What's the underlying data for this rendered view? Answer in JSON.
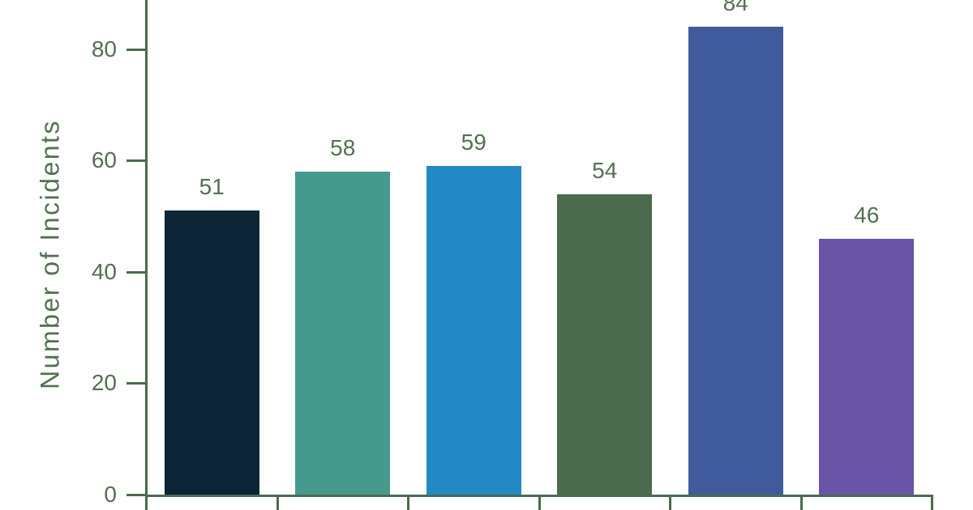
{
  "chart_data": {
    "type": "bar",
    "title": "",
    "xlabel": "",
    "ylabel": "Number of Incidents",
    "values": [
      51,
      58,
      59,
      54,
      84,
      46
    ],
    "value_labels": [
      "51",
      "58",
      "59",
      "54",
      "84",
      "46"
    ],
    "bar_colors": [
      "#0d2637",
      "#459a8d",
      "#2289c5",
      "#4c6b4e",
      "#3f5b9b",
      "#6a54a7"
    ],
    "yticks": [
      "0",
      "20",
      "40",
      "60",
      "80"
    ],
    "ytick_values": [
      0,
      20,
      40,
      60,
      80
    ],
    "ylim": [
      0,
      89
    ],
    "grid": false,
    "legend": false,
    "x_labels_visible": false,
    "crop_note": ""
  },
  "colors": {
    "axis": "#4b6a4f",
    "text": "#527150",
    "background": "#ffffff"
  }
}
